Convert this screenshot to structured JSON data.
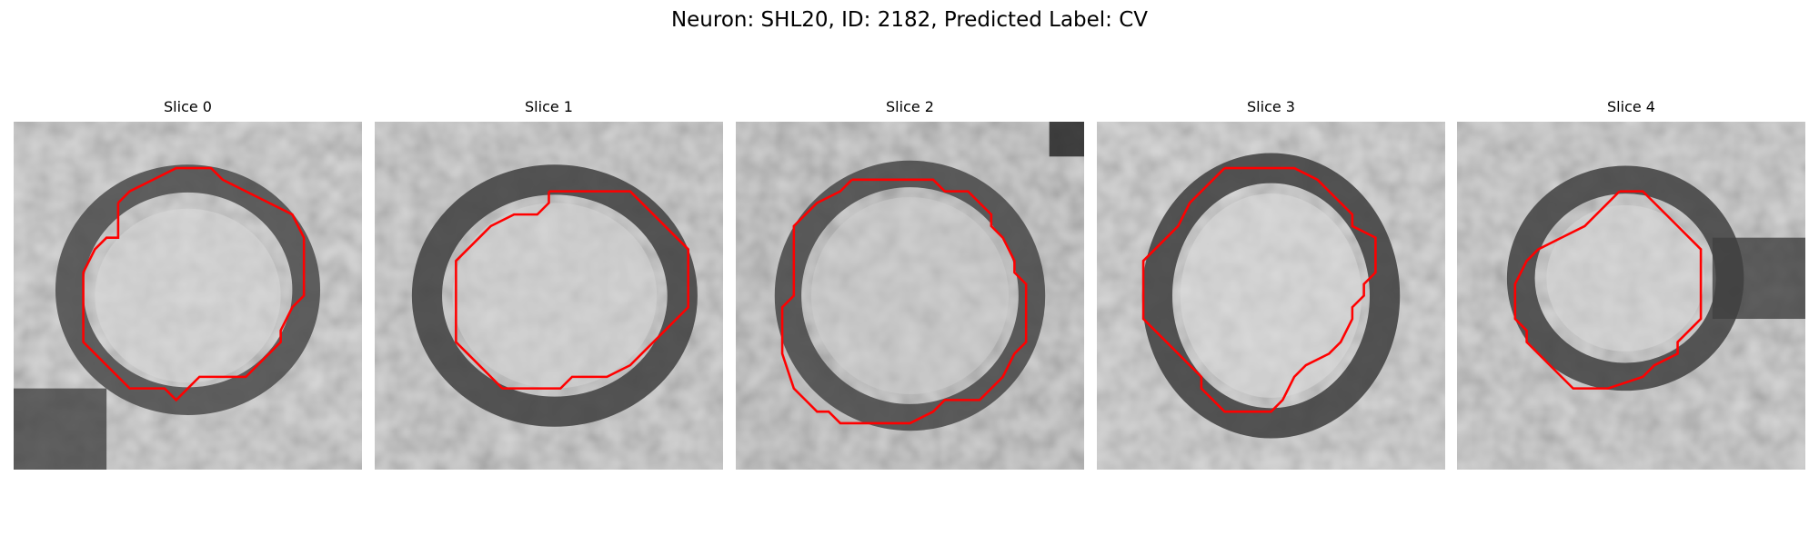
{
  "figure": {
    "title": "Neuron: SHL20, ID: 2182, Predicted Label: CV"
  },
  "panels": [
    {
      "title": "Slice 0"
    },
    {
      "title": "Slice 1"
    },
    {
      "title": "Slice 2"
    },
    {
      "title": "Slice 3"
    },
    {
      "title": "Slice 4"
    }
  ],
  "colors": {
    "contour": "#ff0000",
    "background": "#ffffff"
  }
}
